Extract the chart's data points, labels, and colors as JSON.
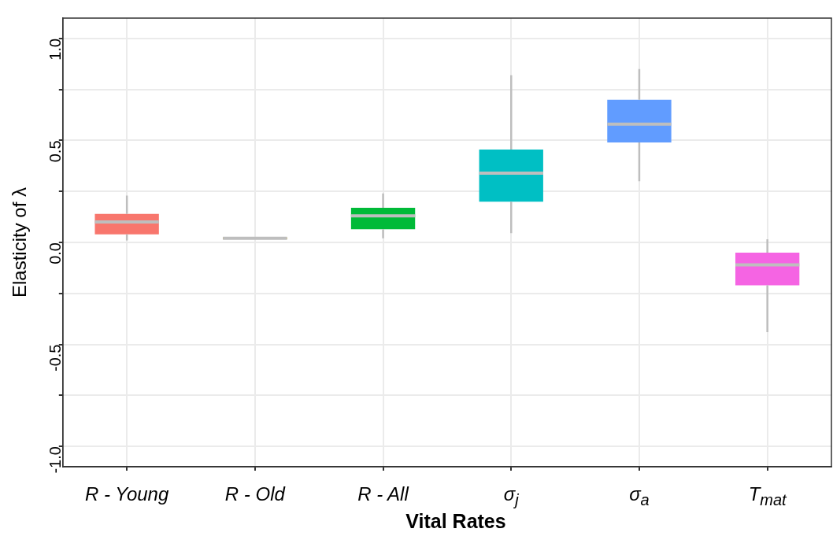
{
  "chart_data": {
    "type": "box",
    "xlabel": "Vital Rates",
    "ylabel": "Elasticity of λ",
    "categories": [
      "R - Young",
      "R - Old",
      "R - All",
      "σ$_{j}$",
      "σ$_{a}$",
      "T$_{mat}$"
    ],
    "colors": [
      "#f8766d",
      "#b79f00",
      "#00ba38",
      "#00bfc4",
      "#619cff",
      "#f564e3"
    ],
    "boxes": [
      {
        "low": 0.01,
        "q1": 0.04,
        "median": 0.1,
        "q3": 0.14,
        "high": 0.23
      },
      {
        "low": 0.01,
        "q1": 0.015,
        "median": 0.02,
        "q3": 0.025,
        "high": 0.03
      },
      {
        "low": 0.02,
        "q1": 0.065,
        "median": 0.13,
        "q3": 0.17,
        "high": 0.24
      },
      {
        "low": 0.045,
        "q1": 0.2,
        "median": 0.34,
        "q3": 0.455,
        "high": 0.82
      },
      {
        "low": 0.3,
        "q1": 0.49,
        "median": 0.58,
        "q3": 0.7,
        "high": 0.85
      },
      {
        "low": -0.44,
        "q1": -0.21,
        "median": -0.11,
        "q3": -0.05,
        "high": 0.015
      }
    ],
    "ylim": [
      -1.1,
      1.1
    ],
    "yticks": [
      {
        "value": -1,
        "label": "-1.0"
      },
      {
        "value": -0.75,
        "label": null
      },
      {
        "value": -0.5,
        "label": "-0.5"
      },
      {
        "value": -0.25,
        "label": null
      },
      {
        "value": 0,
        "label": "0.0"
      },
      {
        "value": 0.25,
        "label": null
      },
      {
        "value": 0.5,
        "label": "0.5"
      },
      {
        "value": 0.75,
        "label": null
      },
      {
        "value": 1,
        "label": "1.0"
      }
    ],
    "grid": true,
    "legend": false
  }
}
